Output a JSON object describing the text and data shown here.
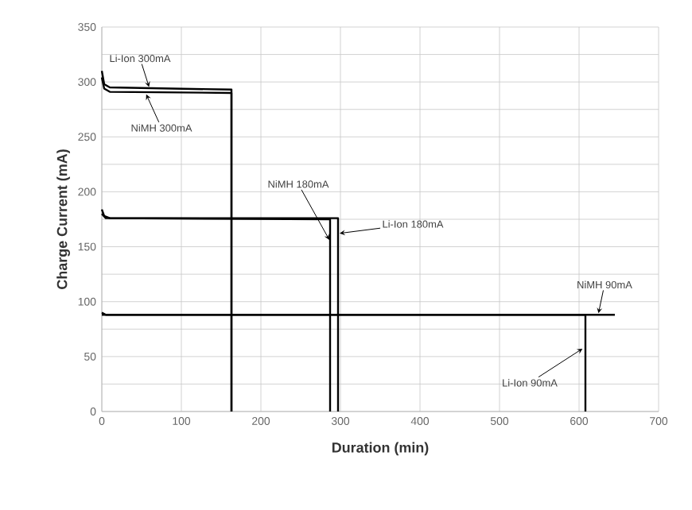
{
  "chart_data": {
    "type": "line",
    "xlabel": "Duration (min)",
    "ylabel": "Charge Current (mA)",
    "xlim": [
      0,
      700
    ],
    "xticks": [
      0,
      100,
      200,
      300,
      400,
      500,
      600,
      700
    ],
    "ylim": [
      0,
      350
    ],
    "yticks": [
      0,
      {
        "value": 25,
        "label": null
      },
      50,
      {
        "value": 75,
        "label": null
      },
      100,
      {
        "value": 125,
        "label": null
      },
      150,
      {
        "value": 175,
        "label": null
      },
      200,
      {
        "value": 225,
        "label": null
      },
      250,
      {
        "value": 275,
        "label": null
      },
      300,
      {
        "value": 325,
        "label": null
      },
      350
    ],
    "grid": true,
    "marker": "none",
    "line_style": "solid",
    "series": [
      {
        "color": "#000000",
        "x": [
          0,
          3,
          10,
          163,
          163
        ],
        "values": [
          310,
          298,
          295,
          293,
          0
        ]
      },
      {
        "color": "#000000",
        "x": [
          0,
          3,
          10,
          163,
          163
        ],
        "values": [
          304,
          294,
          291,
          290,
          0
        ]
      },
      {
        "color": "#000000",
        "x": [
          0,
          3,
          10,
          287,
          287
        ],
        "values": [
          184,
          178,
          176,
          175,
          0
        ]
      },
      {
        "color": "#000000",
        "x": [
          0,
          5,
          297,
          297
        ],
        "values": [
          180,
          176,
          176,
          0
        ]
      },
      {
        "color": "#000000",
        "x": [
          0,
          5,
          645
        ],
        "values": [
          90,
          88,
          88
        ]
      },
      {
        "color": "#000000",
        "x": [
          0,
          608,
          608
        ],
        "values": [
          88,
          88,
          0
        ]
      }
    ],
    "annotations": [
      {
        "text": "Li-Ion 300mA",
        "x": 60,
        "y": 294
      },
      {
        "text": "NiMH 300mA",
        "x": 55,
        "y": 290
      },
      {
        "text": "NiMH 180mA",
        "x": 287,
        "y": 155
      },
      {
        "text": "Li-Ion 180mA",
        "x": 297,
        "y": 162
      },
      {
        "text": "NiMH 90mA",
        "x": 624,
        "y": 88
      },
      {
        "text": "Li-Ion 90mA",
        "x": 606,
        "y": 58
      }
    ]
  }
}
